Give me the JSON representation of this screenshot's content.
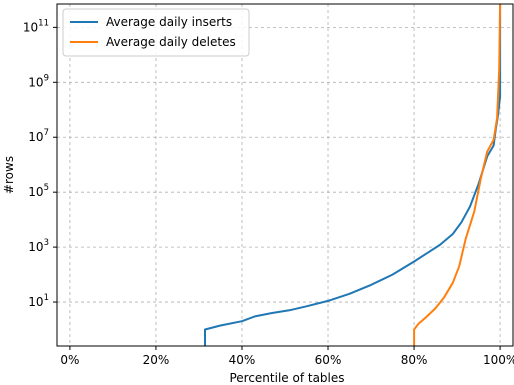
{
  "chart_data": {
    "type": "line",
    "xlabel": "Percentile of tables",
    "ylabel": "#rows",
    "xlim": [
      -3,
      103
    ],
    "ylim_log10": [
      -0.6,
      11.85
    ],
    "y_scale": "log",
    "grid": true,
    "legend_position": "top-left",
    "x_ticks": [
      {
        "value": 0,
        "label": "0%"
      },
      {
        "value": 20,
        "label": "20%"
      },
      {
        "value": 40,
        "label": "40%"
      },
      {
        "value": 60,
        "label": "60%"
      },
      {
        "value": 80,
        "label": "80%"
      },
      {
        "value": 100,
        "label": "100%"
      }
    ],
    "y_ticks": [
      {
        "value": 10.0,
        "base": "10",
        "exp": "1"
      },
      {
        "value": 1000.0,
        "base": "10",
        "exp": "3"
      },
      {
        "value": 100000.0,
        "base": "10",
        "exp": "5"
      },
      {
        "value": 10000000.0,
        "base": "10",
        "exp": "7"
      },
      {
        "value": 1000000000.0,
        "base": "10",
        "exp": "9"
      },
      {
        "value": 100000000000.0,
        "base": "10",
        "exp": "11"
      }
    ],
    "series": [
      {
        "name": "Average daily inserts",
        "color": "#1f77b4",
        "points": [
          [
            31.4,
            0.25
          ],
          [
            31.4,
            1
          ],
          [
            35,
            1.4
          ],
          [
            40,
            2
          ],
          [
            43,
            3
          ],
          [
            47,
            4
          ],
          [
            51,
            5
          ],
          [
            55,
            7
          ],
          [
            60,
            11
          ],
          [
            65,
            20
          ],
          [
            70,
            42
          ],
          [
            75,
            100
          ],
          [
            80,
            300
          ],
          [
            83,
            600
          ],
          [
            86,
            1200
          ],
          [
            89,
            3000
          ],
          [
            91,
            8000
          ],
          [
            93,
            30000
          ],
          [
            95,
            200000
          ],
          [
            97,
            2000000
          ],
          [
            98.5,
            5000000
          ],
          [
            99,
            20000000.0
          ],
          [
            99.5,
            60000000.0
          ],
          [
            100,
            300000000.0
          ],
          [
            100,
            800000000000.0
          ]
        ]
      },
      {
        "name": "Average daily deletes",
        "color": "#ff7f0e",
        "points": [
          [
            80,
            0.25
          ],
          [
            80,
            1
          ],
          [
            81,
            1.6
          ],
          [
            82,
            2.2
          ],
          [
            83,
            3
          ],
          [
            85,
            6
          ],
          [
            87,
            15
          ],
          [
            89,
            50
          ],
          [
            90.5,
            200
          ],
          [
            92,
            2000
          ],
          [
            94,
            20000
          ],
          [
            95.5,
            300000
          ],
          [
            97,
            3000000
          ],
          [
            98.5,
            8000000
          ],
          [
            99.3,
            50000000.0
          ],
          [
            99.8,
            3000000000.0
          ],
          [
            100,
            800000000000.0
          ]
        ]
      }
    ]
  }
}
